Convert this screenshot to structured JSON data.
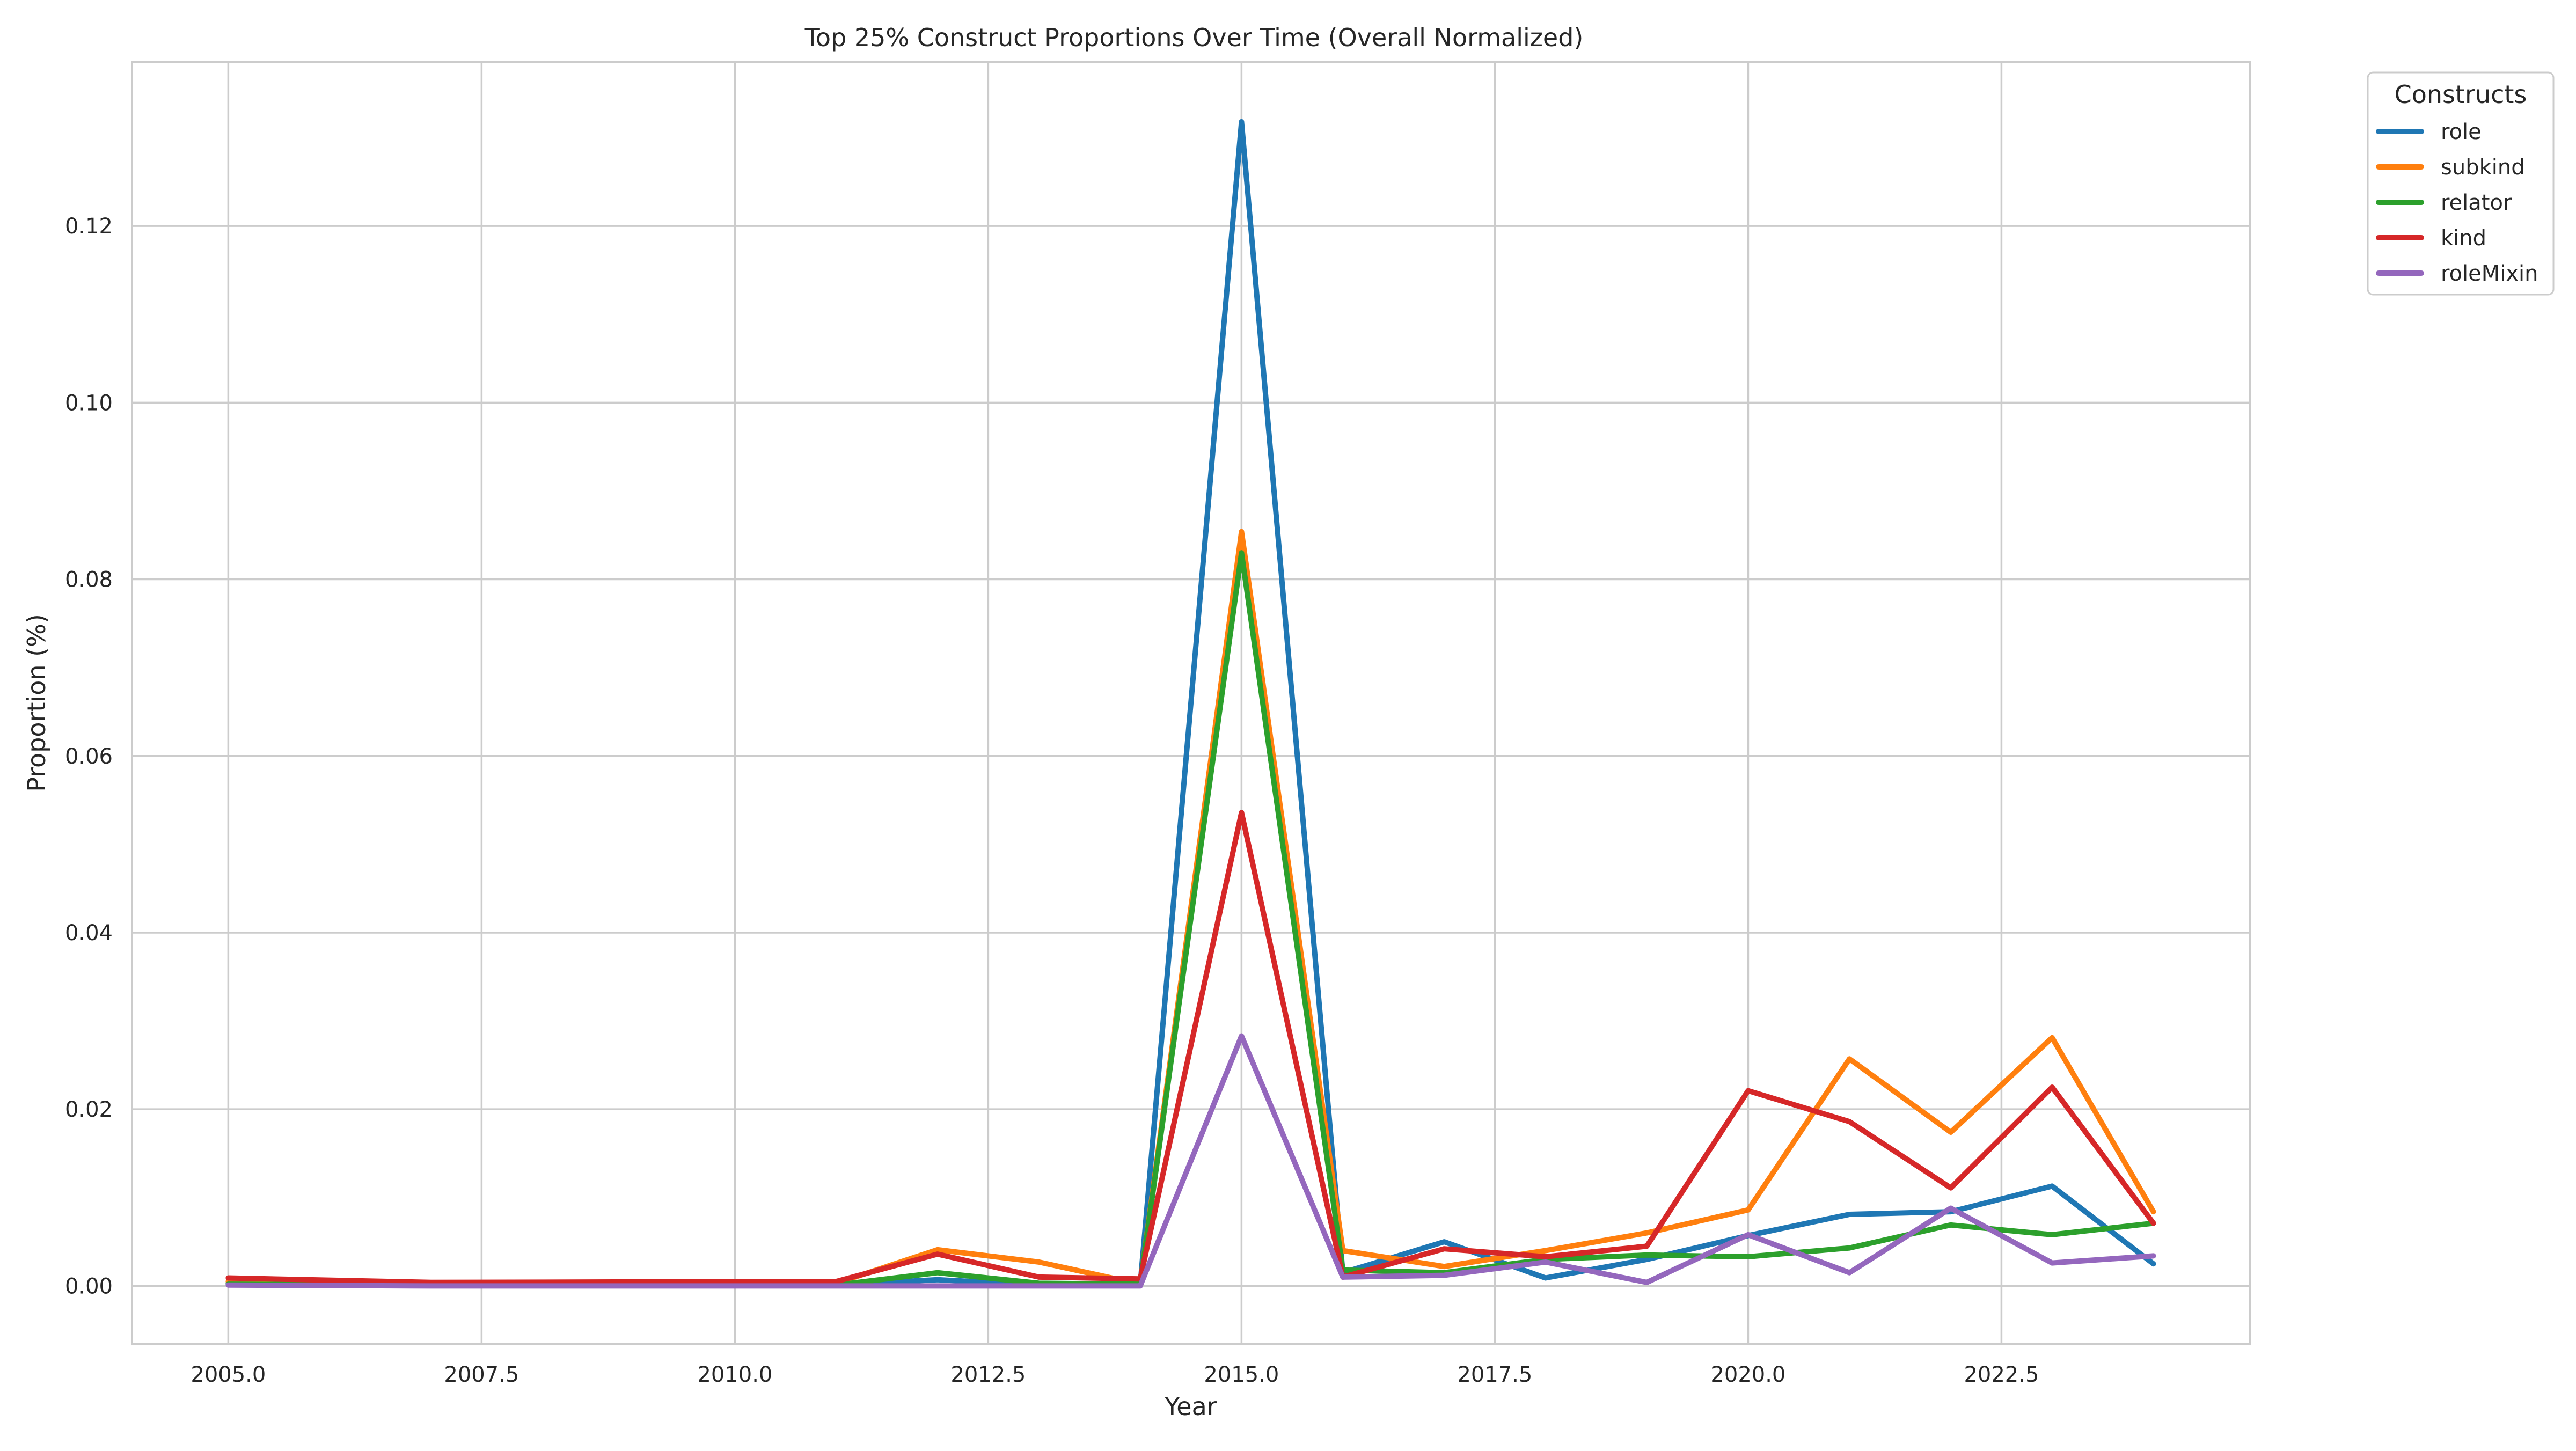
{
  "chart_data": {
    "type": "line",
    "title": "Top 25% Construct Proportions Over Time (Overall Normalized)",
    "xlabel": "Year",
    "ylabel": "Proportion (%)",
    "xlim": [
      2004.05,
      2024.95
    ],
    "ylim": [
      -0.0066,
      0.1386
    ],
    "x_ticks": [
      2005.0,
      2007.5,
      2010.0,
      2012.5,
      2015.0,
      2017.5,
      2020.0,
      2022.5
    ],
    "x_tick_labels": [
      "2005.0",
      "2007.5",
      "2010.0",
      "2012.5",
      "2015.0",
      "2017.5",
      "2020.0",
      "2022.5"
    ],
    "y_ticks": [
      0.0,
      0.02,
      0.04,
      0.06,
      0.08,
      0.1,
      0.12
    ],
    "y_tick_labels": [
      "0.00",
      "0.02",
      "0.04",
      "0.06",
      "0.08",
      "0.10",
      "0.12"
    ],
    "grid": true,
    "legend_title": "Constructs",
    "legend_position": "outside top-right",
    "x": [
      2005,
      2007,
      2011,
      2012,
      2013,
      2014,
      2015,
      2016,
      2017,
      2018,
      2019,
      2020,
      2021,
      2022,
      2023,
      2024
    ],
    "series": [
      {
        "name": "role",
        "color": "#1f77b4",
        "values": [
          0.0003,
          0.0001,
          0.0001,
          0.0007,
          0.0001,
          0.0001,
          0.1318,
          0.0015,
          0.005,
          0.0009,
          0.003,
          0.0057,
          0.0081,
          0.0084,
          0.0113,
          0.0025
        ]
      },
      {
        "name": "subkind",
        "color": "#ff7f0e",
        "values": [
          0.0005,
          0.0003,
          0.0003,
          0.0041,
          0.0027,
          0.0002,
          0.0854,
          0.004,
          0.0022,
          0.004,
          0.006,
          0.0086,
          0.0257,
          0.0174,
          0.0281,
          0.0084
        ]
      },
      {
        "name": "relator",
        "color": "#2ca02c",
        "values": [
          0.0002,
          0.0001,
          0.0001,
          0.0015,
          0.0003,
          0.0002,
          0.083,
          0.0018,
          0.0015,
          0.003,
          0.0035,
          0.0033,
          0.0043,
          0.0069,
          0.0058,
          0.0071
        ]
      },
      {
        "name": "kind",
        "color": "#d62728",
        "values": [
          0.0009,
          0.0004,
          0.0005,
          0.0036,
          0.001,
          0.0008,
          0.0536,
          0.001,
          0.0042,
          0.0033,
          0.0045,
          0.0221,
          0.0186,
          0.0111,
          0.0225,
          0.0071
        ]
      },
      {
        "name": "roleMixin",
        "color": "#9467bd",
        "values": [
          0.0001,
          0.0,
          0.0,
          0.0,
          0.0,
          0.0,
          0.0283,
          0.001,
          0.0012,
          0.0027,
          0.0004,
          0.0058,
          0.0015,
          0.0088,
          0.0026,
          0.0034
        ]
      }
    ]
  }
}
